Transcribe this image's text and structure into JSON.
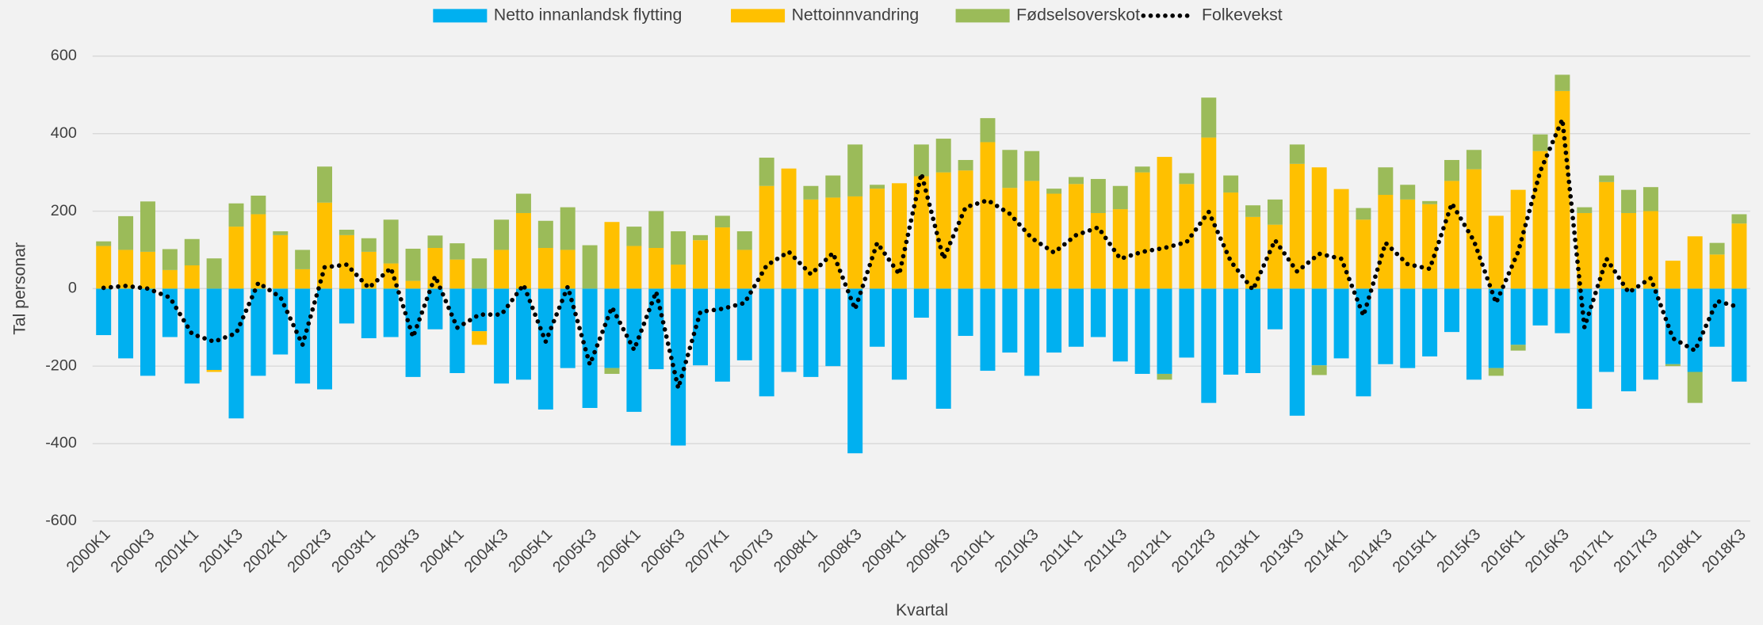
{
  "chart_data": {
    "type": "bar",
    "stacked": true,
    "x_label": "Kvartal",
    "y_label": "Tal personar",
    "categories": [
      "2000K1",
      null,
      "2000K3",
      null,
      "2001K1",
      null,
      "2001K3",
      null,
      "2002K1",
      null,
      "2002K3",
      null,
      "2003K1",
      null,
      "2003K3",
      null,
      "2004K1",
      null,
      "2004K3",
      null,
      "2005K1",
      null,
      "2005K3",
      null,
      "2006K1",
      null,
      "2006K3",
      null,
      "2007K1",
      null,
      "2007K3",
      null,
      "2008K1",
      null,
      "2008K3",
      null,
      "2009K1",
      null,
      "2009K3",
      null,
      "2010K1",
      null,
      "2010K3",
      null,
      "2011K1",
      null,
      "2011K3",
      null,
      "2012K1",
      null,
      "2012K3",
      null,
      "2013K1",
      null,
      "2013K3",
      null,
      "2014K1",
      null,
      "2014K3",
      null,
      "2015K1",
      null,
      "2015K3",
      null,
      "2016K1",
      null,
      "2016K3",
      null,
      "2017K1",
      null,
      "2017K3",
      null,
      "2018K1",
      null,
      "2018K3"
    ],
    "series": [
      {
        "name": "Netto innanlandsk flytting",
        "color": "#00b0f0",
        "values": [
          -120,
          -180,
          -225,
          -125,
          -245,
          -210,
          -335,
          -225,
          -170,
          -245,
          -260,
          -90,
          -128,
          -125,
          -228,
          -105,
          -218,
          -110,
          -245,
          -235,
          -312,
          -205,
          -308,
          -205,
          -318,
          -208,
          -405,
          -198,
          -240,
          -185,
          -278,
          -215,
          -228,
          -200,
          -425,
          -150,
          -235,
          -75,
          -310,
          -122,
          -212,
          -165,
          -225,
          -165,
          -150,
          -125,
          -188,
          -220,
          -220,
          -178,
          -295,
          -222,
          -218,
          -105,
          -328,
          -198,
          -180,
          -278,
          -195,
          -205,
          -175,
          -112,
          -235,
          -205,
          -145,
          -95,
          -115,
          -310,
          -215,
          -265,
          -235,
          -195,
          -215,
          -150,
          -240
        ]
      },
      {
        "name": "Nettoinnvandring",
        "color": "#ffc000",
        "values": [
          110,
          100,
          95,
          48,
          60,
          -5,
          160,
          192,
          138,
          50,
          222,
          138,
          95,
          65,
          20,
          105,
          75,
          -35,
          100,
          195,
          105,
          100,
          0,
          172,
          110,
          105,
          62,
          125,
          158,
          100,
          265,
          310,
          230,
          235,
          238,
          258,
          272,
          290,
          300,
          305,
          378,
          260,
          278,
          245,
          270,
          195,
          205,
          300,
          340,
          270,
          390,
          248,
          185,
          165,
          322,
          313,
          257,
          178,
          242,
          230,
          218,
          278,
          308,
          188,
          255,
          355,
          510,
          195,
          275,
          195,
          200,
          72,
          135,
          88,
          168
        ]
      },
      {
        "name": "Fødselsoverskot",
        "color": "#9bbb59",
        "values": [
          12,
          87,
          130,
          54,
          68,
          78,
          60,
          48,
          10,
          50,
          93,
          14,
          35,
          113,
          83,
          32,
          42,
          78,
          78,
          50,
          70,
          110,
          112,
          -15,
          50,
          95,
          86,
          13,
          30,
          48,
          73,
          0,
          35,
          57,
          134,
          10,
          0,
          82,
          87,
          27,
          62,
          98,
          77,
          13,
          18,
          88,
          60,
          15,
          -15,
          28,
          103,
          44,
          30,
          65,
          50,
          -25,
          0,
          30,
          71,
          38,
          8,
          54,
          50,
          -20,
          -15,
          43,
          42,
          15,
          17,
          60,
          62,
          -5,
          -80,
          30,
          24
        ]
      },
      {
        "name": "Folkevekst",
        "type": "line",
        "color": "#000000",
        "values": [
          2,
          7,
          0,
          -23,
          -117,
          -137,
          -115,
          15,
          -22,
          -145,
          55,
          62,
          2,
          53,
          -125,
          32,
          -101,
          -67,
          -67,
          10,
          -137,
          5,
          -196,
          -48,
          -158,
          -8,
          -257,
          -60,
          -52,
          -37,
          60,
          95,
          37,
          92,
          -53,
          118,
          37,
          297,
          77,
          210,
          228,
          193,
          130,
          93,
          138,
          158,
          77,
          95,
          105,
          120,
          198,
          70,
          -3,
          125,
          44,
          90,
          77,
          -70,
          118,
          63,
          51,
          220,
          123,
          -37,
          95,
          303,
          437,
          -100,
          77,
          -10,
          27,
          -128,
          -160,
          -32,
          -48
        ]
      }
    ],
    "ylim": [
      -600,
      600
    ],
    "yticks": [
      -600,
      -400,
      -200,
      0,
      200,
      400,
      600
    ],
    "grid": true,
    "legend": "top"
  }
}
